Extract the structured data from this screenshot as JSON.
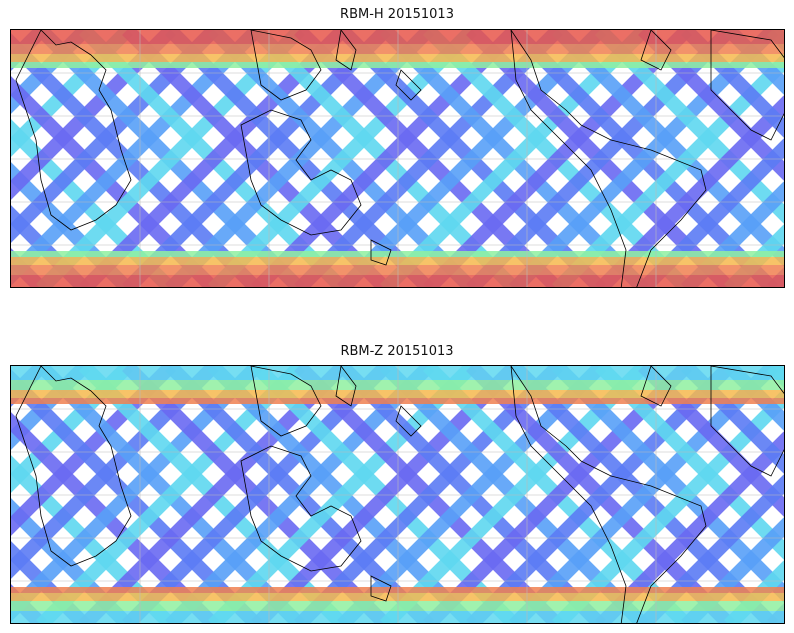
{
  "panels": [
    {
      "title": "RBM-H 20151013",
      "polar_bands": [
        "#e8564a",
        "#f08050",
        "#f6b84e",
        "#8ff0a0"
      ],
      "swath_colors": [
        "#6a6af2",
        "#5c7cf5",
        "#58a0f8",
        "#5fd8f0"
      ]
    },
    {
      "title": "RBM-Z 20151013",
      "polar_bands": [
        "#5fd8f0",
        "#8ff0a0",
        "#f6b84e",
        "#f08050"
      ],
      "swath_colors": [
        "#6a6af2",
        "#5c7cf5",
        "#58a0f8",
        "#5fd8f0"
      ]
    }
  ],
  "colors": {
    "land_outline": "#000000",
    "grid": "#bbbbbb",
    "frame": "#000000"
  }
}
